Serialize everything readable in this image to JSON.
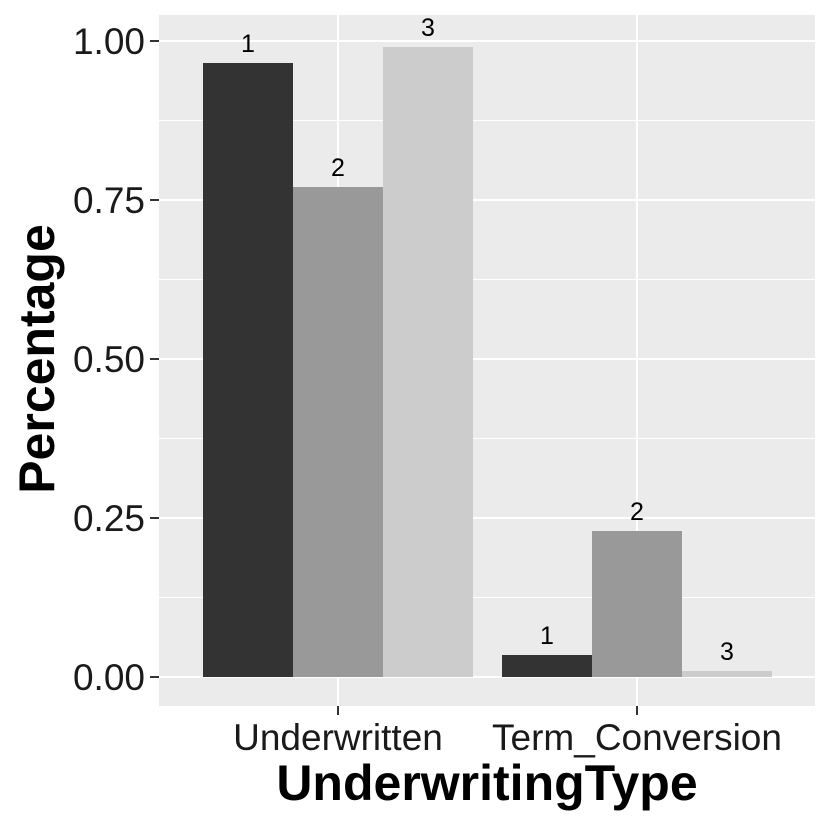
{
  "figure": {
    "background": "#FFFFFF"
  },
  "chart_data": {
    "type": "bar",
    "orientation": "vertical",
    "grouping": "dodged",
    "title": "",
    "xlabel": "UnderwritingType",
    "ylabel": "Percentage",
    "categories": [
      "Underwritten",
      "Term_Conversion"
    ],
    "series": [
      {
        "name": "1",
        "color": "#333333",
        "values": [
          0.965,
          0.035
        ]
      },
      {
        "name": "2",
        "color": "#999999",
        "values": [
          0.77,
          0.23
        ]
      },
      {
        "name": "3",
        "color": "#CCCCCC",
        "values": [
          0.99,
          0.01
        ]
      }
    ],
    "bar_annotations": "series name printed above each bar",
    "y_ticks": [
      {
        "value": 1.0,
        "label": "1.00"
      },
      {
        "value": 0.75,
        "label": "0.75"
      },
      {
        "value": 0.5,
        "label": "0.50"
      },
      {
        "value": 0.25,
        "label": "0.25"
      },
      {
        "value": 0.0,
        "label": "0.00"
      }
    ],
    "ylim": [
      -0.045,
      1.042
    ],
    "legend": "none",
    "style": {
      "panel_bg": "#EBEBEB",
      "grid_major_color": "#FFFFFF",
      "grid_minor_color": "#FFFFFF",
      "tick_color": "#333333",
      "text_color": "#000000"
    }
  }
}
